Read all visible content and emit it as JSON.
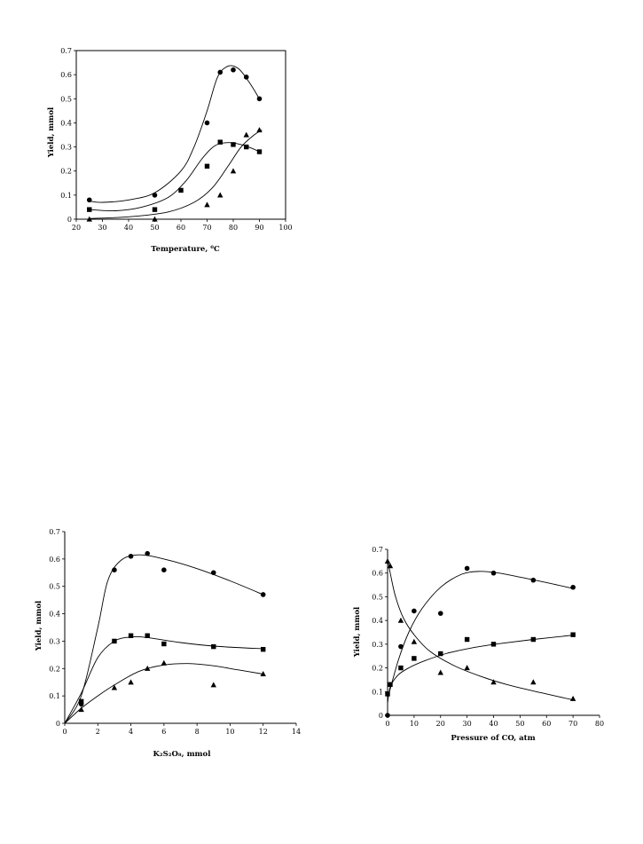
{
  "chart_data": [
    {
      "type": "scatter",
      "xlabel": "Temperature, ⁰C",
      "ylabel": "Yield, mmol",
      "xlim": [
        20,
        100
      ],
      "ylim": [
        0,
        0.7
      ],
      "xticks": [
        "20",
        "30",
        "40",
        "50",
        "60",
        "70",
        "80",
        "90",
        "100"
      ],
      "yticks": [
        "0",
        "0.1",
        "0.2",
        "0.3",
        "0.4",
        "0.5",
        "0.6",
        "0.7"
      ],
      "frame": "box",
      "series": [
        {
          "marker": "circle",
          "x": [
            25,
            50,
            70,
            75,
            80,
            85,
            90
          ],
          "y": [
            0.08,
            0.1,
            0.4,
            0.61,
            0.62,
            0.59,
            0.5
          ],
          "fit": [
            [
              25,
              0.075
            ],
            [
              30,
              0.07
            ],
            [
              40,
              0.08
            ],
            [
              50,
              0.11
            ],
            [
              60,
              0.2
            ],
            [
              65,
              0.3
            ],
            [
              70,
              0.45
            ],
            [
              74,
              0.59
            ],
            [
              78,
              0.635
            ],
            [
              82,
              0.625
            ],
            [
              86,
              0.57
            ],
            [
              90,
              0.5
            ]
          ]
        },
        {
          "marker": "square",
          "x": [
            25,
            50,
            60,
            70,
            75,
            80,
            85,
            90
          ],
          "y": [
            0.04,
            0.04,
            0.12,
            0.22,
            0.32,
            0.31,
            0.3,
            0.28
          ],
          "fit": [
            [
              25,
              0.04
            ],
            [
              35,
              0.035
            ],
            [
              45,
              0.05
            ],
            [
              55,
              0.09
            ],
            [
              62,
              0.16
            ],
            [
              68,
              0.25
            ],
            [
              73,
              0.305
            ],
            [
              78,
              0.318
            ],
            [
              83,
              0.31
            ],
            [
              87,
              0.295
            ],
            [
              90,
              0.28
            ]
          ]
        },
        {
          "marker": "triangle",
          "x": [
            25,
            50,
            70,
            75,
            80,
            85,
            90
          ],
          "y": [
            0.0,
            0.0,
            0.06,
            0.1,
            0.2,
            0.35,
            0.37
          ],
          "fit": [
            [
              25,
              0.003
            ],
            [
              40,
              0.01
            ],
            [
              55,
              0.03
            ],
            [
              65,
              0.07
            ],
            [
              72,
              0.13
            ],
            [
              78,
              0.22
            ],
            [
              83,
              0.3
            ],
            [
              88,
              0.35
            ],
            [
              91,
              0.37
            ]
          ]
        }
      ]
    },
    {
      "type": "scatter",
      "xlabel": "K₂S₂O₈, mmol",
      "ylabel": "Yield, mmol",
      "xlim": [
        0,
        14
      ],
      "ylim": [
        0,
        0.7
      ],
      "xticks": [
        "0",
        "2",
        "4",
        "6",
        "8",
        "10",
        "12",
        "14"
      ],
      "yticks": [
        "0",
        "0.1",
        "0.2",
        "0.3",
        "0.4",
        "0.5",
        "0.6",
        "0.7"
      ],
      "frame": "open",
      "series": [
        {
          "marker": "circle",
          "x": [
            1,
            3,
            4,
            5,
            6,
            9,
            12
          ],
          "y": [
            0.07,
            0.56,
            0.61,
            0.62,
            0.56,
            0.55,
            0.47
          ],
          "fit": [
            [
              0,
              0
            ],
            [
              1,
              0.1
            ],
            [
              2,
              0.35
            ],
            [
              2.6,
              0.52
            ],
            [
              3.4,
              0.595
            ],
            [
              4.5,
              0.615
            ],
            [
              6,
              0.6
            ],
            [
              8,
              0.565
            ],
            [
              10,
              0.52
            ],
            [
              12,
              0.47
            ]
          ]
        },
        {
          "marker": "square",
          "x": [
            1,
            3,
            4,
            5,
            6,
            9,
            12
          ],
          "y": [
            0.08,
            0.3,
            0.32,
            0.32,
            0.29,
            0.28,
            0.27
          ],
          "fit": [
            [
              0,
              0
            ],
            [
              1,
              0.11
            ],
            [
              2,
              0.24
            ],
            [
              3,
              0.3
            ],
            [
              4,
              0.315
            ],
            [
              5,
              0.313
            ],
            [
              7,
              0.295
            ],
            [
              9,
              0.282
            ],
            [
              12,
              0.272
            ]
          ]
        },
        {
          "marker": "triangle",
          "x": [
            1,
            3,
            4,
            5,
            6,
            9,
            12
          ],
          "y": [
            0.05,
            0.13,
            0.15,
            0.2,
            0.22,
            0.14,
            0.18
          ],
          "fit": [
            [
              0,
              0
            ],
            [
              1,
              0.055
            ],
            [
              2,
              0.1
            ],
            [
              3,
              0.14
            ],
            [
              4.5,
              0.19
            ],
            [
              6,
              0.213
            ],
            [
              7.5,
              0.218
            ],
            [
              9,
              0.21
            ],
            [
              10.5,
              0.195
            ],
            [
              12,
              0.18
            ]
          ]
        }
      ]
    },
    {
      "type": "scatter",
      "xlabel": "Pressure of CO, atm",
      "ylabel": "Yield, mmol",
      "xlim": [
        0,
        80
      ],
      "ylim": [
        0,
        0.7
      ],
      "xticks": [
        "0",
        "10",
        "20",
        "30",
        "40",
        "50",
        "60",
        "70",
        "80"
      ],
      "yticks": [
        "0",
        "0.1",
        "0.2",
        "0.3",
        "0.4",
        "0.5",
        "0.6",
        "0.7"
      ],
      "frame": "open",
      "series": [
        {
          "marker": "circle",
          "x": [
            0,
            5,
            10,
            20,
            30,
            40,
            55,
            70
          ],
          "y": [
            0.0,
            0.29,
            0.44,
            0.43,
            0.62,
            0.6,
            0.57,
            0.54
          ],
          "fit": [
            [
              0,
              0.07
            ],
            [
              4,
              0.23
            ],
            [
              8,
              0.35
            ],
            [
              13,
              0.45
            ],
            [
              20,
              0.54
            ],
            [
              28,
              0.595
            ],
            [
              35,
              0.607
            ],
            [
              42,
              0.6
            ],
            [
              50,
              0.583
            ],
            [
              60,
              0.56
            ],
            [
              70,
              0.535
            ]
          ]
        },
        {
          "marker": "square",
          "x": [
            0,
            1,
            5,
            10,
            20,
            30,
            40,
            55,
            70
          ],
          "y": [
            0.09,
            0.13,
            0.2,
            0.24,
            0.26,
            0.32,
            0.3,
            0.32,
            0.34
          ],
          "fit": [
            [
              0,
              0.05
            ],
            [
              1,
              0.12
            ],
            [
              4,
              0.17
            ],
            [
              8,
              0.2
            ],
            [
              14,
              0.23
            ],
            [
              22,
              0.26
            ],
            [
              32,
              0.285
            ],
            [
              42,
              0.302
            ],
            [
              55,
              0.32
            ],
            [
              70,
              0.338
            ]
          ]
        },
        {
          "marker": "triangle",
          "x": [
            0,
            1,
            5,
            10,
            20,
            30,
            40,
            55,
            70
          ],
          "y": [
            0.65,
            0.63,
            0.4,
            0.31,
            0.18,
            0.2,
            0.14,
            0.14,
            0.07
          ],
          "fit": [
            [
              0,
              0.66
            ],
            [
              1,
              0.6
            ],
            [
              3,
              0.5
            ],
            [
              6,
              0.41
            ],
            [
              10,
              0.34
            ],
            [
              16,
              0.27
            ],
            [
              25,
              0.21
            ],
            [
              35,
              0.165
            ],
            [
              45,
              0.13
            ],
            [
              58,
              0.095
            ],
            [
              70,
              0.065
            ]
          ]
        }
      ]
    }
  ]
}
